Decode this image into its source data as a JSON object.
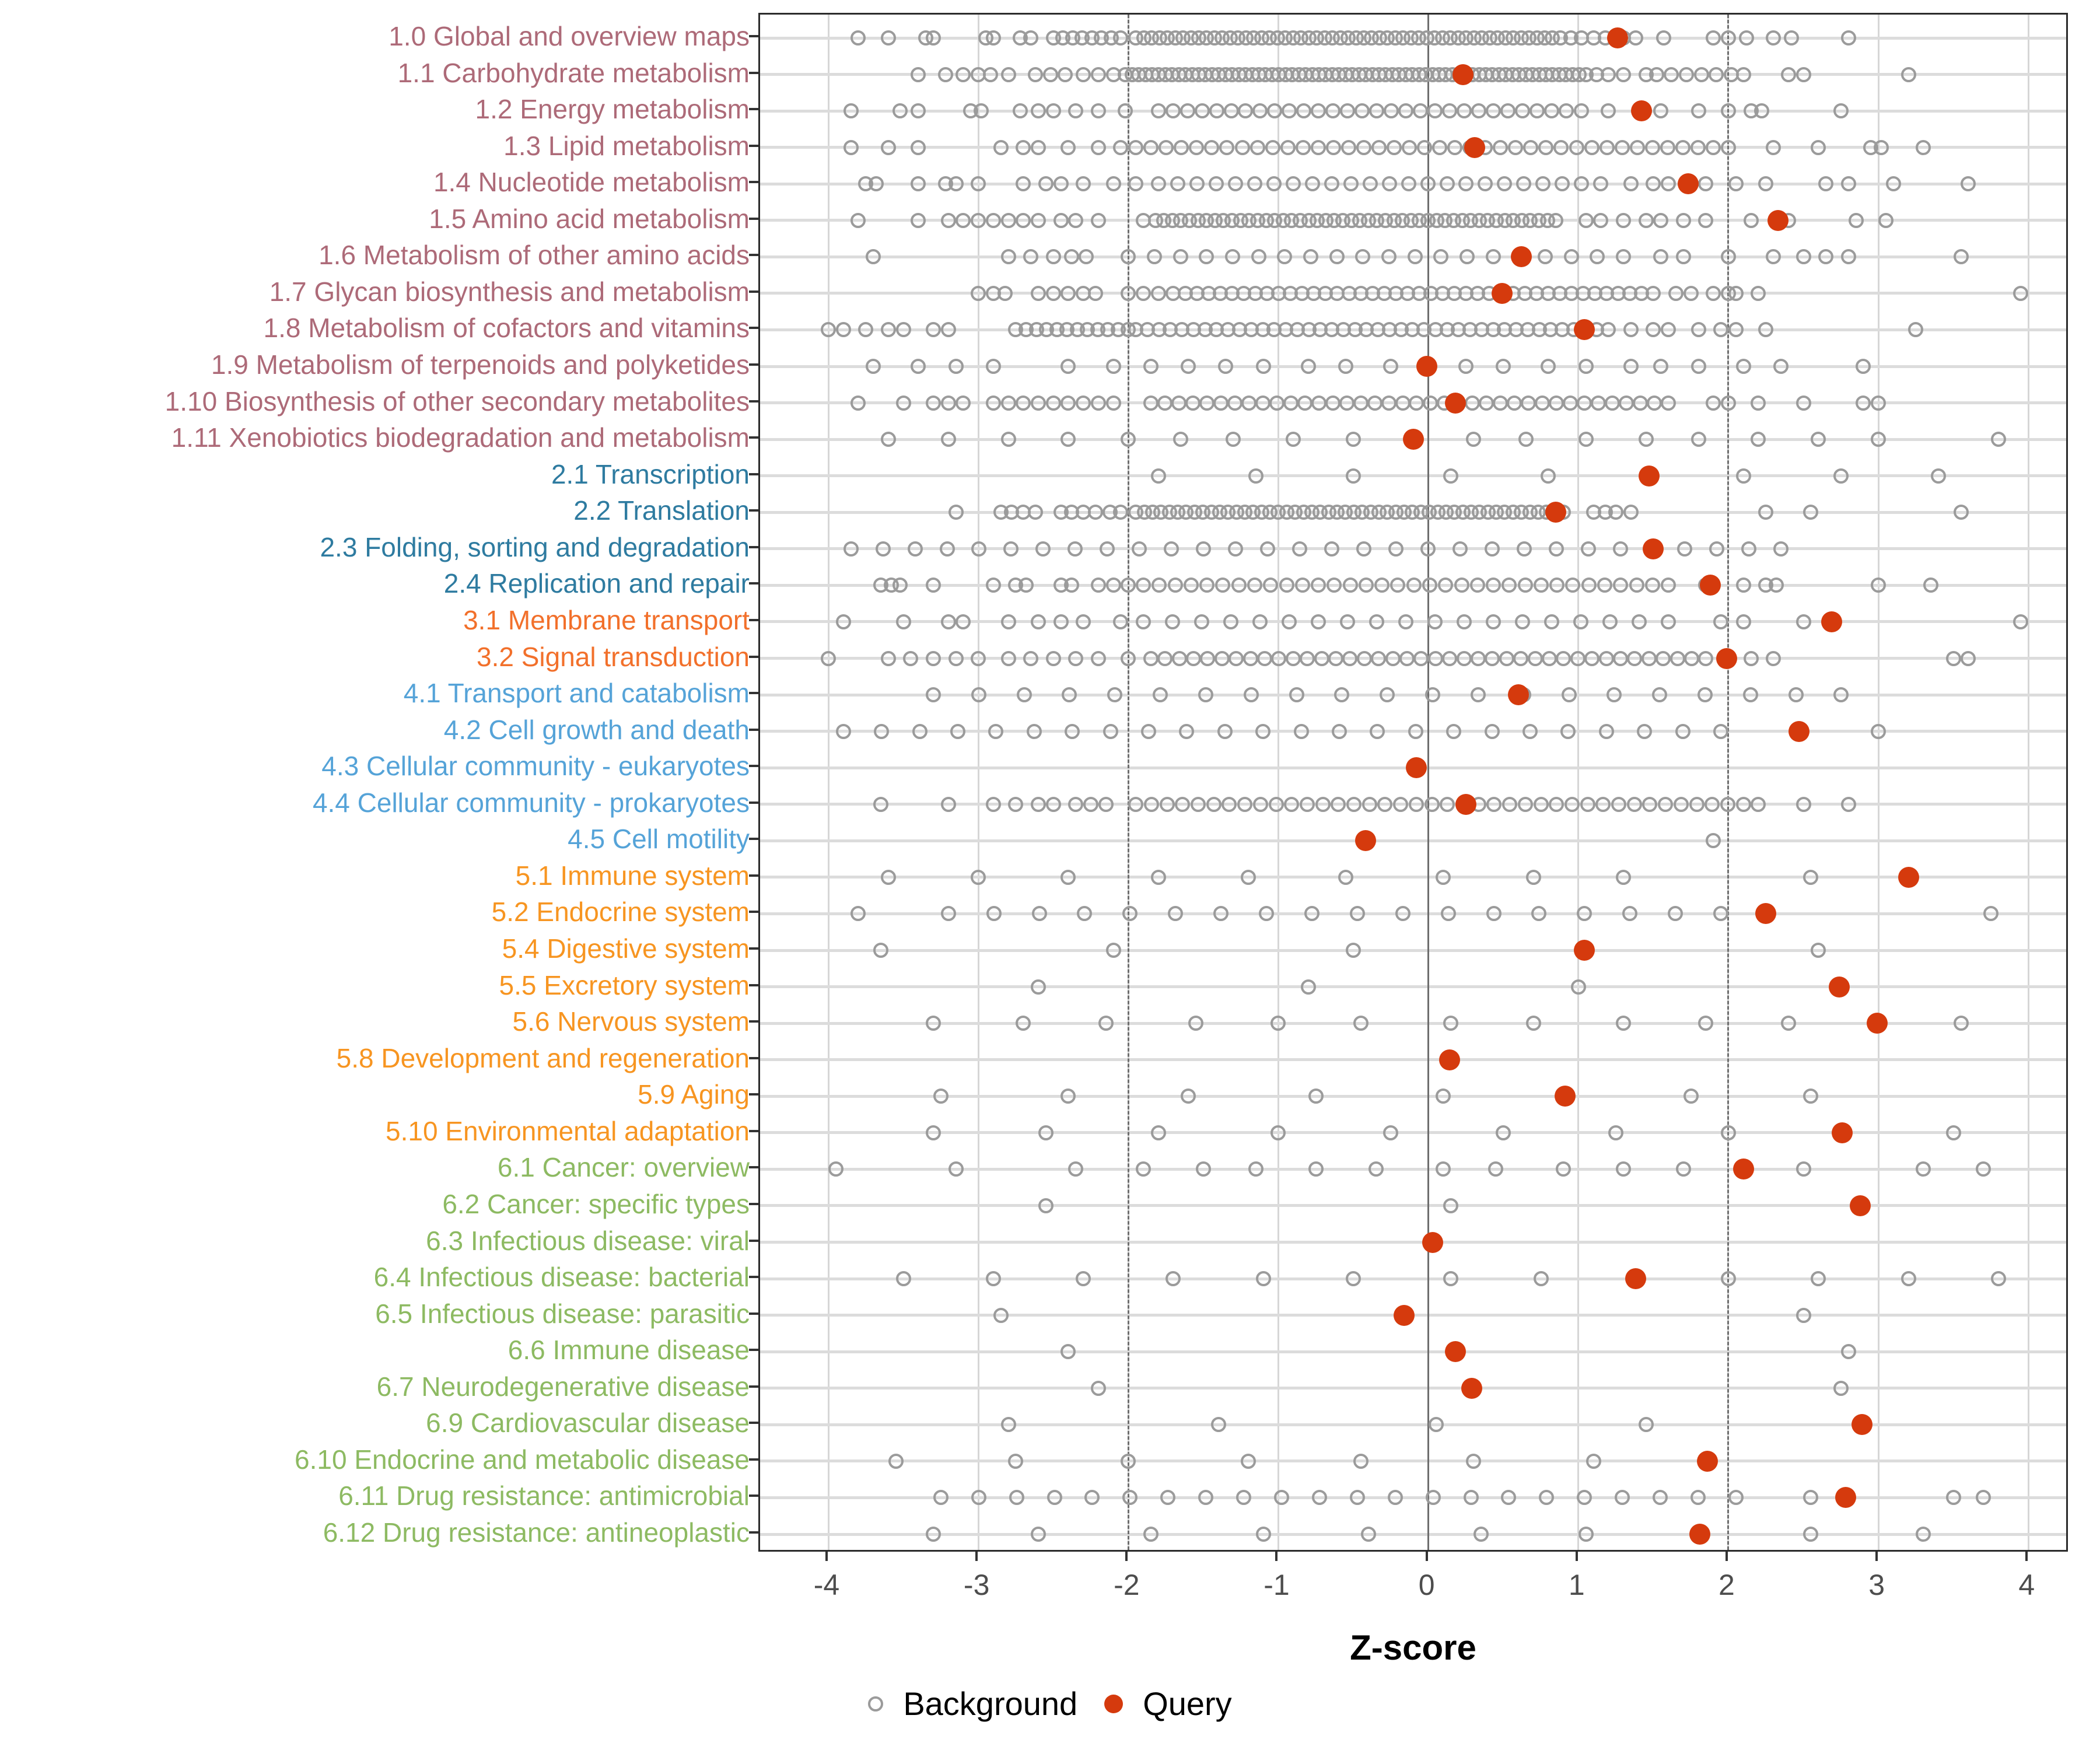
{
  "chart_data": {
    "type": "scatter",
    "title": "",
    "xlabel": "Z-score",
    "ylabel": "",
    "xlim": [
      -4.455,
      4.275
    ],
    "x_ticks": [
      -4,
      -3,
      -2,
      -1,
      0,
      1,
      2,
      3,
      4
    ],
    "reference_lines": {
      "solid": [
        0
      ],
      "dashed": [
        -2,
        2
      ]
    },
    "grid": "on",
    "legend_position": "bottom",
    "legend": [
      {
        "label": "Background",
        "marker": "open-circle"
      },
      {
        "label": "Query",
        "marker": "filled-circle"
      }
    ],
    "colors": {
      "query": "#d53a0d",
      "background_stroke": "#9b9b9b",
      "group_1": "#ad6a78",
      "group_2": "#2e7ba0",
      "group_3": "#f2702b",
      "group_4": "#55a3d8",
      "group_5": "#f79521",
      "group_6": "#8dba62"
    },
    "rows": [
      {
        "label": "1.0 Global and overview maps",
        "group": "1",
        "query": 1.26,
        "bg_runs": [
          [
            -2.5,
            -2.05,
            8
          ],
          [
            -1.95,
            0.88,
            55
          ]
        ],
        "bg_points": [
          -3.8,
          -3.6,
          -3.35,
          -3.3,
          -2.95,
          -2.9,
          -2.72,
          -2.65,
          0.95,
          1.02,
          1.1,
          1.18,
          1.3,
          1.38,
          1.57,
          1.9,
          2.0,
          2.12,
          2.3,
          2.42,
          2.8
        ]
      },
      {
        "label": "1.1 Carbohydrate metabolism",
        "group": "1",
        "query": 0.23,
        "bg_runs": [
          [
            -2.02,
            1.05,
            70
          ]
        ],
        "bg_points": [
          -3.4,
          -3.22,
          -3.1,
          -3.0,
          -2.92,
          -2.8,
          -2.62,
          -2.52,
          -2.42,
          -2.3,
          -2.2,
          -2.1,
          1.12,
          1.2,
          1.3,
          1.45,
          1.52,
          1.62,
          1.72,
          1.82,
          1.92,
          2.02,
          2.1,
          2.4,
          2.5,
          3.2
        ]
      },
      {
        "label": "1.2 Energy metabolism",
        "group": "1",
        "query": 1.42,
        "bg_runs": [
          [
            -1.8,
            0.82,
            28
          ]
        ],
        "bg_points": [
          -3.85,
          -3.52,
          -3.4,
          -3.05,
          -2.98,
          -2.72,
          -2.6,
          -2.5,
          -2.35,
          -2.2,
          -2.02,
          0.92,
          1.02,
          1.2,
          1.55,
          1.8,
          2.0,
          2.15,
          2.22,
          2.75
        ]
      },
      {
        "label": "1.3 Lipid metabolism",
        "group": "1",
        "query": 0.31,
        "bg_runs": [
          [
            -1.95,
            2.0,
            40
          ]
        ],
        "bg_points": [
          -3.85,
          -3.6,
          -3.4,
          -2.85,
          -2.7,
          -2.6,
          -2.4,
          -2.2,
          -2.05,
          2.3,
          2.6,
          2.95,
          3.02,
          3.3
        ]
      },
      {
        "label": "1.4 Nucleotide metabolism",
        "group": "1",
        "query": 1.73,
        "bg_runs": [
          [
            -1.8,
            1.15,
            24
          ]
        ],
        "bg_points": [
          -3.75,
          -3.68,
          -3.4,
          -3.22,
          -3.15,
          -3.0,
          -2.7,
          -2.55,
          -2.45,
          -2.3,
          -2.1,
          -1.95,
          1.35,
          1.5,
          1.6,
          1.85,
          2.05,
          2.25,
          2.65,
          2.8,
          3.1,
          3.6
        ]
      },
      {
        "label": "1.5 Amino acid metabolism",
        "group": "1",
        "query": 2.33,
        "bg_runs": [
          [
            -1.82,
            0.85,
            48
          ]
        ],
        "bg_points": [
          -3.8,
          -3.4,
          -3.2,
          -3.1,
          -3.0,
          -2.9,
          -2.8,
          -2.7,
          -2.6,
          -2.45,
          -2.35,
          -2.2,
          -1.9,
          1.05,
          1.15,
          1.3,
          1.45,
          1.55,
          1.7,
          1.85,
          2.15,
          2.4,
          2.85,
          3.05
        ]
      },
      {
        "label": "1.6 Metabolism of other amino acids",
        "group": "1",
        "query": 0.62,
        "bg_runs": [
          [
            -2.0,
            1.3,
            20
          ]
        ],
        "bg_points": [
          -3.7,
          -2.8,
          -2.65,
          -2.5,
          -2.38,
          -2.28,
          1.55,
          1.7,
          2.0,
          2.3,
          2.5,
          2.65,
          2.8,
          3.55
        ]
      },
      {
        "label": "1.7 Glycan biosynthesis and metabolism",
        "group": "1",
        "query": 0.49,
        "bg_runs": [
          [
            -1.7,
            1.5,
            42
          ]
        ],
        "bg_points": [
          -3.0,
          -2.9,
          -2.82,
          -2.6,
          -2.5,
          -2.4,
          -2.3,
          -2.22,
          -2.0,
          -1.9,
          -1.8,
          1.65,
          1.75,
          1.9,
          2.0,
          2.05,
          2.2,
          3.95
        ]
      },
      {
        "label": "1.8 Metabolism of cofactors and vitamins",
        "group": "1",
        "query": 1.04,
        "bg_runs": [
          [
            -2.75,
            -2.0,
            12
          ],
          [
            -1.95,
            1.2,
            42
          ]
        ],
        "bg_points": [
          -4.0,
          -3.9,
          -3.75,
          -3.6,
          -3.5,
          -3.3,
          -3.2,
          1.35,
          1.5,
          1.6,
          1.8,
          1.95,
          2.05,
          2.25,
          3.25
        ]
      },
      {
        "label": "1.9 Metabolism of terpenoids and polyketides",
        "group": "1",
        "query": -0.01,
        "bg_runs": [],
        "bg_points": [
          -3.7,
          -3.4,
          -3.15,
          -2.9,
          -2.4,
          -2.1,
          -1.85,
          -1.6,
          -1.35,
          -1.1,
          -0.8,
          -0.55,
          -0.25,
          0.25,
          0.5,
          0.8,
          1.05,
          1.35,
          1.55,
          1.8,
          2.1,
          2.35,
          2.9
        ]
      },
      {
        "label": "1.10 Biosynthesis of other secondary metabolites",
        "group": "1",
        "query": 0.18,
        "bg_runs": [
          [
            -1.85,
            1.6,
            38
          ]
        ],
        "bg_points": [
          -3.8,
          -3.5,
          -3.3,
          -3.2,
          -3.1,
          -2.9,
          -2.8,
          -2.7,
          -2.6,
          -2.5,
          -2.4,
          -2.3,
          -2.2,
          -2.1,
          1.9,
          2.0,
          2.2,
          2.5,
          2.9,
          3.0
        ]
      },
      {
        "label": "1.11 Xenobiotics biodegradation and metabolism",
        "group": "1",
        "query": -0.1,
        "bg_runs": [],
        "bg_points": [
          -3.6,
          -3.2,
          -2.8,
          -2.4,
          -2.0,
          -1.65,
          -1.3,
          -0.9,
          -0.5,
          0.3,
          0.65,
          1.05,
          1.45,
          1.8,
          2.2,
          2.6,
          3.0,
          3.8
        ]
      },
      {
        "label": "2.1 Transcription",
        "group": "2",
        "query": 1.47,
        "bg_runs": [],
        "bg_points": [
          -1.8,
          -1.15,
          -0.5,
          0.15,
          0.8,
          2.1,
          2.75,
          3.4
        ]
      },
      {
        "label": "2.2 Translation",
        "group": "2",
        "query": 0.85,
        "bg_runs": [
          [
            -1.95,
            0.9,
            52
          ]
        ],
        "bg_points": [
          -3.15,
          -2.85,
          -2.78,
          -2.7,
          -2.62,
          -2.45,
          -2.38,
          -2.3,
          -2.22,
          -2.12,
          -2.05,
          1.1,
          1.18,
          1.25,
          1.35,
          2.25,
          2.55,
          3.55
        ]
      },
      {
        "label": "2.3 Folding, sorting and degradation",
        "group": "2",
        "query": 1.5,
        "bg_runs": [
          [
            -3.85,
            2.35,
            30
          ]
        ],
        "bg_points": []
      },
      {
        "label": "2.4 Replication and repair",
        "group": "2",
        "query": 1.88,
        "bg_runs": [
          [
            -1.9,
            1.6,
            34
          ]
        ],
        "bg_points": [
          -3.65,
          -3.58,
          -3.52,
          -3.3,
          -2.9,
          -2.75,
          -2.68,
          -2.45,
          -2.38,
          -2.2,
          -2.1,
          -2.0,
          1.85,
          2.1,
          2.25,
          2.32,
          3.0,
          3.35
        ]
      },
      {
        "label": "3.1 Membrane transport",
        "group": "3",
        "query": 2.69,
        "bg_runs": [
          [
            -1.9,
            1.6,
            19
          ]
        ],
        "bg_points": [
          -3.9,
          -3.5,
          -3.2,
          -3.1,
          -2.8,
          -2.6,
          -2.45,
          -2.3,
          -2.05,
          1.95,
          2.1,
          2.5,
          3.95
        ]
      },
      {
        "label": "3.2 Signal transduction",
        "group": "3",
        "query": 1.99,
        "bg_runs": [
          [
            -1.85,
            1.85,
            40
          ]
        ],
        "bg_points": [
          -4.0,
          -3.6,
          -3.45,
          -3.3,
          -3.15,
          -3.0,
          -2.8,
          -2.65,
          -2.5,
          -2.35,
          -2.2,
          -2.0,
          2.0,
          2.15,
          2.3,
          3.5,
          3.6
        ]
      },
      {
        "label": "4.1 Transport and catabolism",
        "group": "4",
        "query": 0.6,
        "bg_runs": [
          [
            -3.3,
            2.45,
            20
          ]
        ],
        "bg_points": [
          2.75
        ]
      },
      {
        "label": "4.2 Cell growth and death",
        "group": "4",
        "query": 2.47,
        "bg_runs": [
          [
            -3.9,
            1.95,
            24
          ]
        ],
        "bg_points": [
          3.0
        ]
      },
      {
        "label": "4.3 Cellular community - eukaryotes",
        "group": "4",
        "query": -0.08,
        "bg_runs": [],
        "bg_points": []
      },
      {
        "label": "4.4 Cellular community - prokaryotes",
        "group": "4",
        "query": 0.25,
        "bg_runs": [
          [
            -1.95,
            2.1,
            40
          ]
        ],
        "bg_points": [
          -3.65,
          -3.2,
          -2.9,
          -2.75,
          -2.6,
          -2.5,
          -2.35,
          -2.25,
          -2.15,
          2.2,
          2.5,
          2.8
        ]
      },
      {
        "label": "4.5 Cell motility",
        "group": "4",
        "query": -0.42,
        "bg_runs": [],
        "bg_points": [
          1.9
        ]
      },
      {
        "label": "5.1 Immune system",
        "group": "5",
        "query": 3.2,
        "bg_runs": [],
        "bg_points": [
          -3.6,
          -3.0,
          -2.4,
          -1.8,
          -1.2,
          -0.55,
          0.1,
          0.7,
          1.3,
          2.55
        ]
      },
      {
        "label": "5.2 Endocrine system",
        "group": "5",
        "query": 2.25,
        "bg_runs": [
          [
            -3.2,
            1.95,
            18
          ]
        ],
        "bg_points": [
          -3.8,
          3.75
        ]
      },
      {
        "label": "5.4 Digestive system",
        "group": "5",
        "query": 1.04,
        "bg_runs": [],
        "bg_points": [
          -3.65,
          -2.1,
          -0.5,
          2.6
        ]
      },
      {
        "label": "5.5 Excretory system",
        "group": "5",
        "query": 2.74,
        "bg_runs": [],
        "bg_points": [
          -2.6,
          -0.8,
          1.0
        ]
      },
      {
        "label": "5.6 Nervous system",
        "group": "5",
        "query": 2.99,
        "bg_runs": [],
        "bg_points": [
          -3.3,
          -2.7,
          -2.15,
          -1.55,
          -1.0,
          -0.45,
          0.15,
          0.7,
          1.3,
          1.85,
          2.4,
          3.55
        ]
      },
      {
        "label": "5.8 Development and regeneration",
        "group": "5",
        "query": 0.14,
        "bg_runs": [],
        "bg_points": []
      },
      {
        "label": "5.9 Aging",
        "group": "5",
        "query": 0.91,
        "bg_runs": [],
        "bg_points": [
          -3.25,
          -2.4,
          -1.6,
          -0.75,
          0.1,
          1.75,
          2.55
        ]
      },
      {
        "label": "5.10 Environmental adaptation",
        "group": "5",
        "query": 2.76,
        "bg_runs": [],
        "bg_points": [
          -3.3,
          -2.55,
          -1.8,
          -1.0,
          -0.25,
          0.5,
          1.25,
          2.0,
          3.5
        ]
      },
      {
        "label": "6.1 Cancer: overview",
        "group": "6",
        "query": 2.1,
        "bg_runs": [],
        "bg_points": [
          -3.95,
          -3.15,
          -2.35,
          -1.9,
          -1.5,
          -1.15,
          -0.75,
          -0.35,
          0.1,
          0.45,
          0.9,
          1.3,
          1.7,
          2.5,
          3.3,
          3.7
        ]
      },
      {
        "label": "6.2 Cancer: specific types",
        "group": "6",
        "query": 2.88,
        "bg_runs": [],
        "bg_points": [
          -2.55,
          0.15
        ]
      },
      {
        "label": "6.3 Infectious disease: viral",
        "group": "6",
        "query": 0.03,
        "bg_runs": [],
        "bg_points": []
      },
      {
        "label": "6.4 Infectious disease: bacterial",
        "group": "6",
        "query": 1.38,
        "bg_runs": [],
        "bg_points": [
          -3.5,
          -2.9,
          -2.3,
          -1.7,
          -1.1,
          -0.5,
          0.15,
          0.75,
          2.0,
          2.6,
          3.2,
          3.8
        ]
      },
      {
        "label": "6.5 Infectious disease: parasitic",
        "group": "6",
        "query": -0.16,
        "bg_runs": [],
        "bg_points": [
          -2.85,
          2.5
        ]
      },
      {
        "label": "6.6 Immune disease",
        "group": "6",
        "query": 0.18,
        "bg_runs": [],
        "bg_points": [
          -2.4,
          2.8
        ]
      },
      {
        "label": "6.7 Neurodegenerative disease",
        "group": "6",
        "query": 0.29,
        "bg_runs": [],
        "bg_points": [
          -2.2,
          2.75
        ]
      },
      {
        "label": "6.9 Cardiovascular disease",
        "group": "6",
        "query": 2.89,
        "bg_runs": [],
        "bg_points": [
          -2.8,
          -1.4,
          0.05,
          1.45
        ]
      },
      {
        "label": "6.10 Endocrine and metabolic disease",
        "group": "6",
        "query": 1.86,
        "bg_runs": [],
        "bg_points": [
          -3.55,
          -2.75,
          -2.0,
          -1.2,
          -0.45,
          0.3,
          1.1
        ]
      },
      {
        "label": "6.11 Drug resistance: antimicrobial",
        "group": "6",
        "query": 2.78,
        "bg_runs": [
          [
            -3.25,
            2.05,
            22
          ]
        ],
        "bg_points": [
          2.55,
          3.5,
          3.7
        ]
      },
      {
        "label": "6.12 Drug resistance: antineoplastic",
        "group": "6",
        "query": 1.81,
        "bg_runs": [],
        "bg_points": [
          -3.3,
          -2.6,
          -1.85,
          -1.1,
          -0.4,
          0.35,
          1.05,
          2.55,
          3.3
        ]
      }
    ]
  }
}
